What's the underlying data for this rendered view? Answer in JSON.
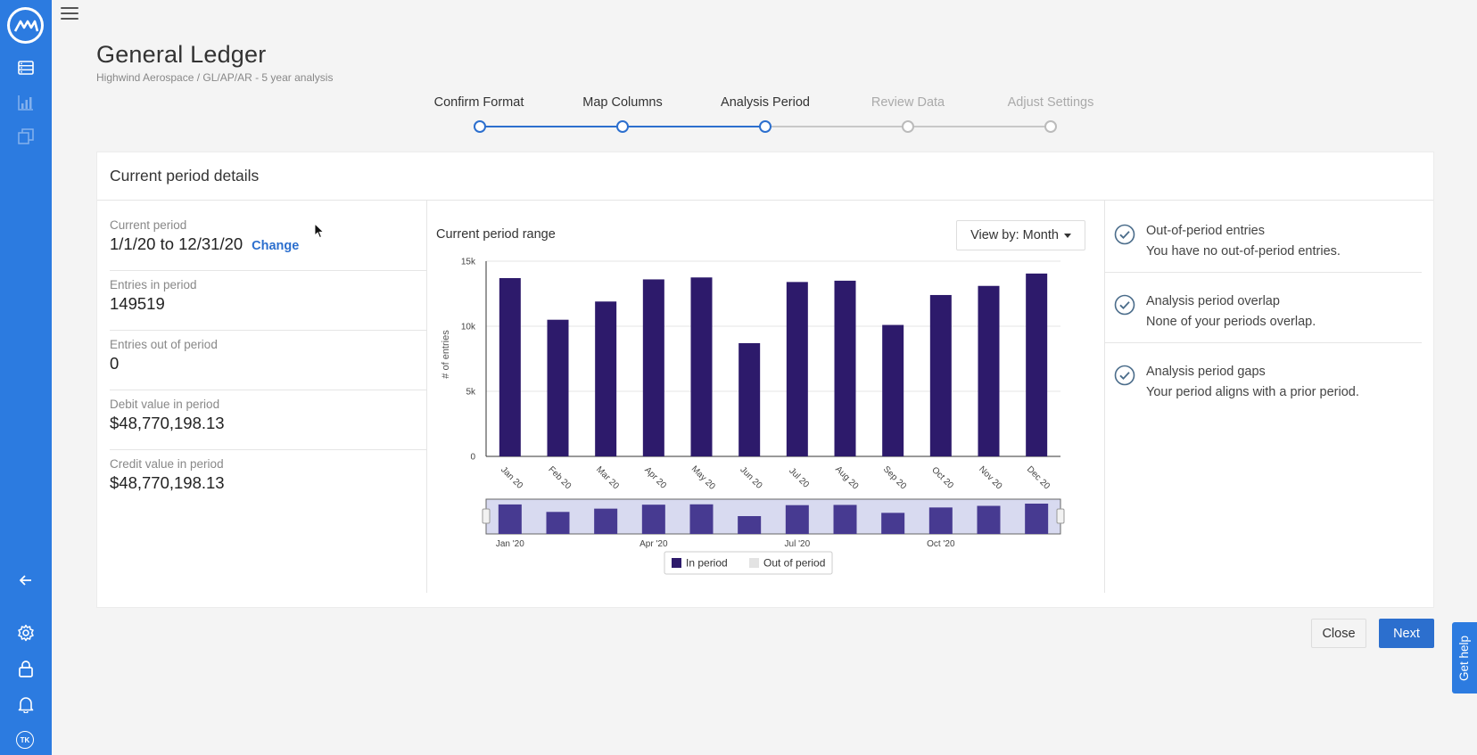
{
  "header": {
    "title": "General Ledger",
    "breadcrumb": "Highwind Aerospace / GL/AP/AR - 5 year analysis"
  },
  "stepper": {
    "steps": [
      {
        "label": "Confirm Format",
        "state": "done"
      },
      {
        "label": "Map Columns",
        "state": "done"
      },
      {
        "label": "Analysis Period",
        "state": "current"
      },
      {
        "label": "Review Data",
        "state": "todo"
      },
      {
        "label": "Adjust Settings",
        "state": "todo"
      }
    ]
  },
  "card": {
    "title": "Current period details",
    "stats": {
      "current_period_label": "Current period",
      "current_period_value": "1/1/20 to 12/31/20",
      "change_label": "Change",
      "entries_in_label": "Entries in period",
      "entries_in_value": "149519",
      "entries_out_label": "Entries out of period",
      "entries_out_value": "0",
      "debit_label": "Debit value in period",
      "debit_value": "$48,770,198.13",
      "credit_label": "Credit value in period",
      "credit_value": "$48,770,198.13"
    },
    "chart_header": {
      "title": "Current period range",
      "view_by": "View by: Month"
    },
    "checks": [
      {
        "title": "Out-of-period entries",
        "desc": "You have no out-of-period entries."
      },
      {
        "title": "Analysis period overlap",
        "desc": "None of your periods overlap."
      },
      {
        "title": "Analysis period gaps",
        "desc": "Your period aligns with a prior period."
      }
    ]
  },
  "footer": {
    "close_label": "Close",
    "next_label": "Next",
    "help_label": "Get help"
  },
  "sidebar": {
    "avatar_initials": "TK",
    "icons": [
      "logo-icon",
      "database-icon",
      "bar-chart-icon",
      "copy-icon",
      "collapse-arrow-icon",
      "gear-icon",
      "lock-icon",
      "bell-icon"
    ]
  },
  "colors": {
    "primary": "#2c7be0",
    "bar": "#2d1a6b",
    "navigator_bar": "#473a91",
    "navigator_bg": "#d8daf0"
  },
  "chart_data": {
    "type": "bar",
    "title": "",
    "ylabel": "# of entries",
    "xlabel": "",
    "categories": [
      "Jan 20",
      "Feb 20",
      "Mar 20",
      "Apr 20",
      "May 20",
      "Jun 20",
      "Jul 20",
      "Aug 20",
      "Sep 20",
      "Oct 20",
      "Nov 20",
      "Dec 20"
    ],
    "values": [
      13700,
      10500,
      11900,
      13600,
      13750,
      8700,
      13400,
      13500,
      10100,
      12400,
      13100,
      14050
    ],
    "ylim": [
      0,
      15000
    ],
    "yticks": [
      0,
      5000,
      10000,
      15000
    ],
    "ytick_labels": [
      "0",
      "5k",
      "10k",
      "15k"
    ],
    "grid": true,
    "navigator_labels": [
      "Jan '20",
      "Apr '20",
      "Jul '20",
      "Oct '20"
    ],
    "legend": [
      {
        "name": "In period",
        "color": "#2d1a6b"
      },
      {
        "name": "Out of period",
        "color": "#e3e3e3"
      }
    ],
    "legend_position": "bottom"
  }
}
